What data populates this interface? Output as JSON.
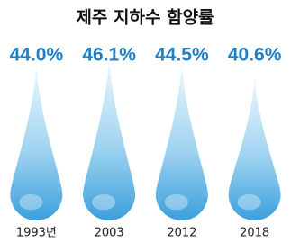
{
  "chart_data": {
    "type": "drop",
    "title": "제주 지하수 함양률",
    "categories": [
      "1993년",
      "2003",
      "2012",
      "2018"
    ],
    "values": [
      44.0,
      46.1,
      44.5,
      40.6
    ],
    "value_labels": [
      "44.0%",
      "46.1%",
      "44.5%",
      "40.6%"
    ],
    "color": "#1f80c8"
  }
}
